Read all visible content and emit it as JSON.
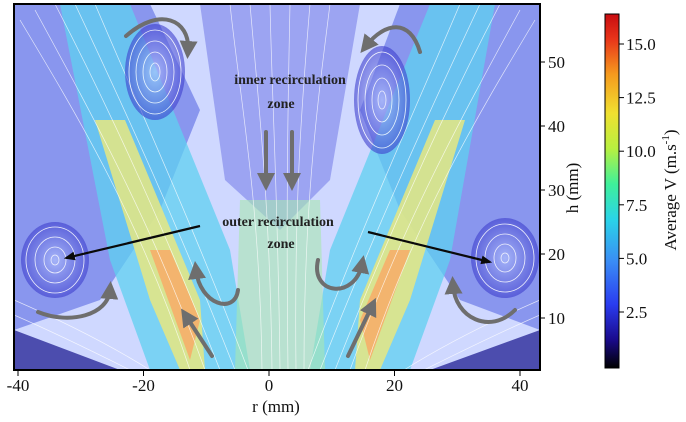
{
  "figure": {
    "x_axis": {
      "label": "r (mm)",
      "ticks": [
        -40,
        -20,
        0,
        20,
        40
      ]
    },
    "y_axis": {
      "label": "h (mm)",
      "ticks": [
        10,
        20,
        30,
        40,
        50
      ]
    },
    "annotations": {
      "inner_line1": "inner recirculation",
      "inner_line2": "zone",
      "outer_line1": "outer recirculation",
      "outer_line2": "zone"
    },
    "colorbar": {
      "label": "Average V (m.s",
      "label_superscript": "-1",
      "label_close": ")",
      "ticks": [
        "2.5",
        "5.0",
        "7.5",
        "10.0",
        "12.5",
        "15.0"
      ],
      "colors": [
        "#000000",
        "#1a0a8c",
        "#2a3cf0",
        "#3a8cf5",
        "#2ad4e8",
        "#3ff09a",
        "#b8f040",
        "#f0e030",
        "#f59a1e",
        "#e8341a",
        "#c80c10"
      ]
    },
    "field_colors": {
      "background": "#dfe6ff",
      "low_speed": "#3e3ed2",
      "jet_core": "#e8f090",
      "jet_peak": "#ff9a5a",
      "streamline": "#ffffff",
      "arrow": "#6e6e6e",
      "annotation_arrow": "#0a0a0a"
    }
  }
}
